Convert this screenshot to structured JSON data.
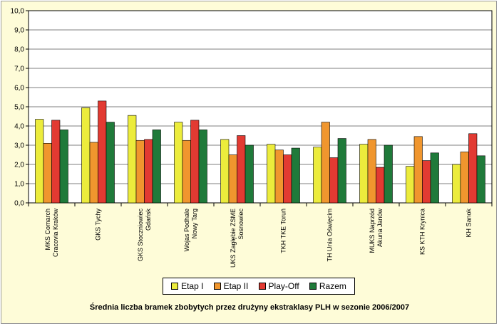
{
  "chart_data": {
    "type": "bar",
    "title": "Średnia liczba bramek zbobytych przez drużyny ekstraklasy PLH w sezonie 2006/2007",
    "xlabel": "",
    "ylabel": "",
    "ylim": [
      0,
      10
    ],
    "y_ticks": [
      "0,0",
      "1,0",
      "2,0",
      "3,0",
      "4,0",
      "5,0",
      "6,0",
      "7,0",
      "8,0",
      "9,0",
      "10,0"
    ],
    "grid": "horizontal",
    "legend_position": "bottom",
    "categories": [
      [
        "MKS Comarch",
        "Cracovia Kraków"
      ],
      [
        "GKS Tychy"
      ],
      [
        "GKS Stoczniowiec",
        "Gdańsk"
      ],
      [
        "Wojas Podhale",
        "Nowy Targ"
      ],
      [
        "UKS Zagłębie ZSME",
        "Sosnowiec"
      ],
      [
        "TKH TKE Toruń"
      ],
      [
        "TH Unia Oświęcim"
      ],
      [
        "MUKS Naprzód",
        "Akuna Janów"
      ],
      [
        "KS KTH Krynica"
      ],
      [
        "KH Sanok"
      ]
    ],
    "series": [
      {
        "name": "Etap I",
        "color": "#ecec3c",
        "values": [
          4.35,
          4.95,
          4.55,
          4.2,
          3.3,
          3.05,
          2.9,
          3.05,
          1.9,
          2.0
        ]
      },
      {
        "name": "Etap II",
        "color": "#f0962e",
        "values": [
          3.1,
          3.15,
          3.25,
          3.25,
          2.5,
          2.75,
          4.2,
          3.3,
          3.45,
          2.65
        ]
      },
      {
        "name": "Play-Off",
        "color": "#e23a32",
        "values": [
          4.3,
          5.3,
          3.3,
          4.3,
          3.5,
          2.5,
          2.35,
          1.85,
          2.2,
          3.6
        ]
      },
      {
        "name": "Razem",
        "color": "#1f7a3a",
        "values": [
          3.8,
          4.2,
          3.8,
          3.8,
          3.0,
          2.85,
          3.35,
          3.0,
          2.6,
          2.45
        ]
      }
    ]
  }
}
